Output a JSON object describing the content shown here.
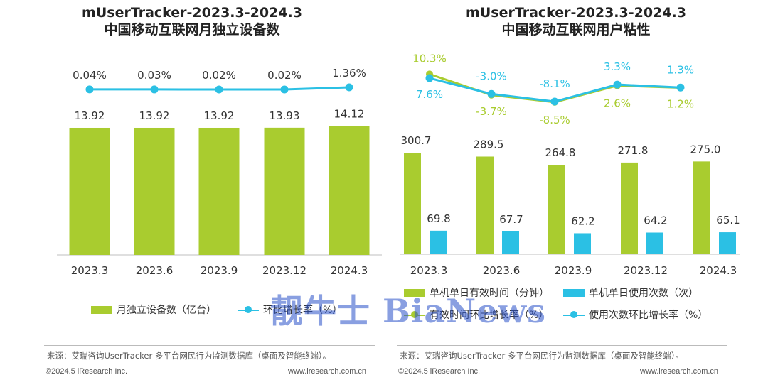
{
  "chart_data": [
    {
      "type": "bar",
      "title": "mUserTracker-2023.3-2024.3",
      "subtitle": "中国移动互联网月独立设备数",
      "categories": [
        "2023.3",
        "2023.6",
        "2023.9",
        "2023.12",
        "2024.3"
      ],
      "series": [
        {
          "name": "月独立设备数（亿台）",
          "type": "bar",
          "values": [
            13.92,
            13.92,
            13.92,
            13.93,
            14.12
          ],
          "labels": [
            "13.92",
            "13.92",
            "13.92",
            "13.93",
            "14.12"
          ],
          "color": "#A9CC2F"
        },
        {
          "name": "环比增长率（%）",
          "type": "line",
          "values": [
            0.04,
            0.03,
            0.02,
            0.02,
            1.36
          ],
          "labels": [
            "0.04%",
            "0.03%",
            "0.02%",
            "0.02%",
            "1.36%"
          ],
          "color": "#2BC0E4"
        }
      ],
      "legend_position": "bottom",
      "grid": false
    },
    {
      "type": "bar",
      "title": "mUserTracker-2023.3-2024.3",
      "subtitle": "中国移动互联网用户粘性",
      "categories": [
        "2023.3",
        "2023.6",
        "2023.9",
        "2023.12",
        "2024.3"
      ],
      "series": [
        {
          "name": "单机单日有效时间（分钟）",
          "type": "bar",
          "values": [
            300.7,
            289.5,
            264.8,
            271.8,
            275.0
          ],
          "labels": [
            "300.7",
            "289.5",
            "264.8",
            "271.8",
            "275.0"
          ],
          "color": "#A9CC2F"
        },
        {
          "name": "单机单日使用次数（次）",
          "type": "bar",
          "values": [
            69.8,
            67.7,
            62.2,
            64.2,
            65.1
          ],
          "labels": [
            "69.8",
            "67.7",
            "62.2",
            "64.2",
            "65.1"
          ],
          "color": "#2BC0E4"
        },
        {
          "name": "有效时间环比增长率（%）",
          "type": "line",
          "values": [
            10.3,
            -3.7,
            -8.5,
            2.6,
            1.2
          ],
          "labels": [
            "10.3%",
            "-3.7%",
            "-8.5%",
            "2.6%",
            "1.2%"
          ],
          "color": "#A9CC2F"
        },
        {
          "name": "使用次数环比增长率（%）",
          "type": "line",
          "values": [
            7.6,
            -3.0,
            -8.1,
            3.3,
            1.3
          ],
          "labels": [
            "7.6%",
            "-3.0%",
            "-8.1%",
            "3.3%",
            "1.3%"
          ],
          "color": "#2BC0E4"
        }
      ],
      "legend_position": "bottom",
      "grid": false
    }
  ],
  "footer": {
    "source": "来源：艾瑞咨询UserTracker 多平台网民行为监测数据库（桌面及智能终端）。",
    "copyright": "©2024.5 iResearch Inc.",
    "website": "www.iresearch.com.cn"
  },
  "watermark": "靓牛士 BiaNews"
}
